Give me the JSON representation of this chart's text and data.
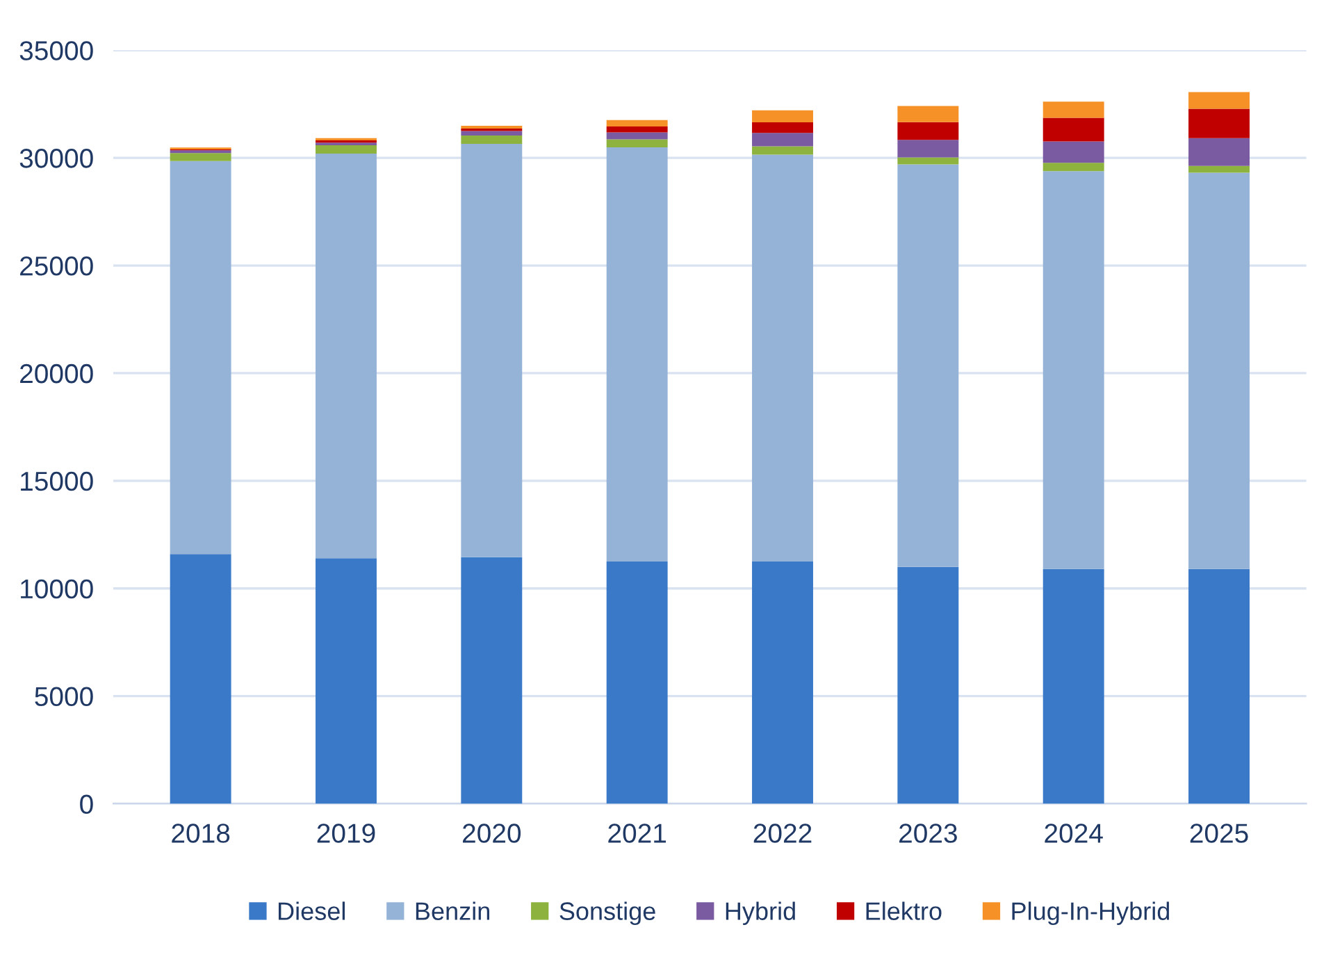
{
  "chart_data": {
    "type": "bar",
    "stacked": true,
    "categories": [
      "2018",
      "2019",
      "2020",
      "2021",
      "2022",
      "2023",
      "2024",
      "2025"
    ],
    "series": [
      {
        "name": "Diesel",
        "color": "#3a78c8",
        "values": [
          11600,
          11400,
          11450,
          11250,
          11250,
          11000,
          10900,
          10900
        ]
      },
      {
        "name": "Benzin",
        "color": "#95b3d7",
        "values": [
          18250,
          18800,
          19200,
          19240,
          18900,
          18700,
          18480,
          18410
        ]
      },
      {
        "name": "Sonstige",
        "color": "#8db33e",
        "values": [
          370,
          390,
          390,
          370,
          390,
          320,
          390,
          320
        ]
      },
      {
        "name": "Hybrid",
        "color": "#7a5aa0",
        "values": [
          130,
          120,
          210,
          320,
          620,
          820,
          990,
          1290
        ]
      },
      {
        "name": "Elektro",
        "color": "#c00000",
        "values": [
          40,
          100,
          110,
          280,
          490,
          820,
          1100,
          1360
        ]
      },
      {
        "name": "Plug-In-Hybrid",
        "color": "#f59127",
        "values": [
          90,
          110,
          130,
          300,
          560,
          750,
          750,
          780
        ]
      }
    ],
    "ylim": [
      0,
      35000
    ],
    "yticks": [
      0,
      5000,
      10000,
      15000,
      20000,
      25000,
      30000,
      35000
    ],
    "grid": "y",
    "legend": "bottom"
  }
}
